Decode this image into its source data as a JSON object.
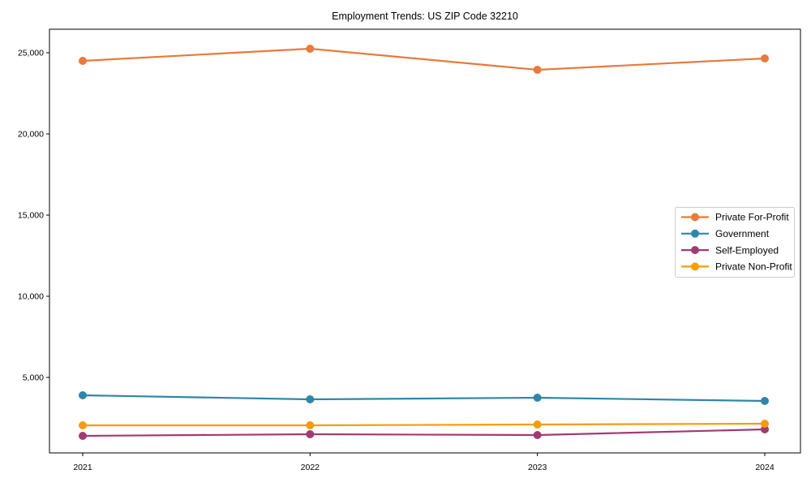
{
  "chart_data": {
    "type": "line",
    "title": "Employment Trends: US ZIP Code 32210",
    "categories": [
      "2021",
      "2022",
      "2023",
      "2024"
    ],
    "series": [
      {
        "name": "Private For-Profit",
        "color": "#E87A3B",
        "values": [
          24500,
          25250,
          23950,
          24650
        ]
      },
      {
        "name": "Government",
        "color": "#2E87A8",
        "values": [
          3900,
          3650,
          3750,
          3550
        ]
      },
      {
        "name": "Self-Employed",
        "color": "#A23B72",
        "values": [
          1400,
          1500,
          1450,
          1800
        ]
      },
      {
        "name": "Private Non-Profit",
        "color": "#F49D0B",
        "values": [
          2050,
          2050,
          2100,
          2150
        ]
      }
    ],
    "xlabel": "",
    "ylabel": "",
    "ylim": [
      350,
      26450
    ],
    "yticks": [
      5000,
      10000,
      15000,
      20000,
      25000
    ],
    "ytick_labels": [
      "5,000",
      "10,000",
      "15,000",
      "20,000",
      "25,000"
    ],
    "grid": false,
    "legend_position": "right-middle",
    "plot_border_color": "#000000",
    "legend_border_color": "#cccccc"
  }
}
